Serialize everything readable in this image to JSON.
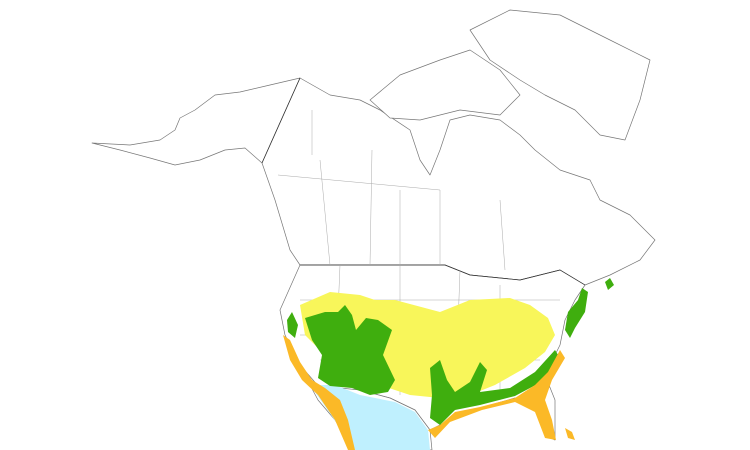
{
  "map": {
    "type": "species range map",
    "region": "North America",
    "colors": {
      "yellow_range": "#f8f65a",
      "green_range": "#3fae0e",
      "orange_range": "#fbb927",
      "blue_range": "#bff0fe",
      "outline": "#777777"
    }
  }
}
